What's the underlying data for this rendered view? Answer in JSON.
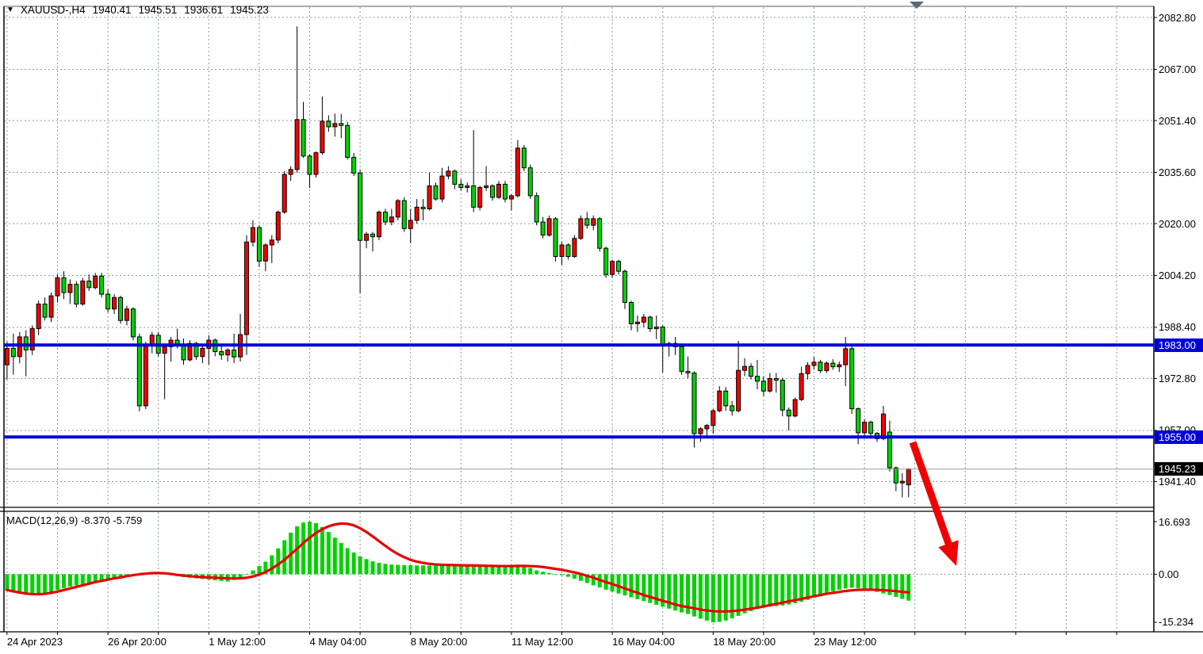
{
  "window": {
    "symbol": "XAUUSD-,H4",
    "open": "1940.41",
    "high": "1945.51",
    "low": "1936.61",
    "close": "1945.23"
  },
  "price_axis": {
    "ticks": [
      {
        "label": "2082.80",
        "price": 2082.8
      },
      {
        "label": "2067.00",
        "price": 2067.0
      },
      {
        "label": "2051.40",
        "price": 2051.4
      },
      {
        "label": "2035.60",
        "price": 2035.6
      },
      {
        "label": "2020.00",
        "price": 2020.0
      },
      {
        "label": "2004.20",
        "price": 2004.2
      },
      {
        "label": "1988.40",
        "price": 1988.4
      },
      {
        "label": "1972.80",
        "price": 1972.8
      },
      {
        "label": "1957.00",
        "price": 1957.0
      },
      {
        "label": "1941.40",
        "price": 1941.4
      }
    ],
    "badges": [
      {
        "label": "1983.00",
        "price": 1983.0,
        "bg": "#0000d8",
        "name": "resistance-price-badge"
      },
      {
        "label": "1955.00",
        "price": 1955.0,
        "bg": "#0000d8",
        "name": "support-price-badge"
      },
      {
        "label": "1945.23",
        "price": 1945.23,
        "bg": "#000000",
        "name": "current-price-badge"
      }
    ]
  },
  "time_axis": {
    "labels": [
      "24 Apr 2023",
      "26 Apr 20:00",
      "1 May 12:00",
      "4 May 04:00",
      "8 May 20:00",
      "11 May 12:00",
      "16 May 04:00",
      "18 May 20:00",
      "23 May 12:00"
    ]
  },
  "macd_panel": {
    "title": "MACD(12,26,9) -8.370 -5.759",
    "axis": [
      {
        "label": "16.693",
        "value": 16.693
      },
      {
        "label": "0.00",
        "value": 0.0
      },
      {
        "label": "-15.234",
        "value": -15.234
      }
    ]
  },
  "chart_data": {
    "type": "candlestick",
    "title": "XAUUSD-,H4",
    "timeframe": "H4",
    "x_labels": [
      "24 Apr 2023",
      "26 Apr 20:00",
      "1 May 12:00",
      "4 May 04:00",
      "8 May 20:00",
      "11 May 12:00",
      "16 May 04:00",
      "18 May 20:00",
      "23 May 12:00"
    ],
    "label_every_n_candles": 16,
    "price_range_visible": [
      1931.5,
      2086.0
    ],
    "grid": true,
    "hlines": [
      {
        "price": 1983.0,
        "label": "1983.00",
        "color": "#0000d8"
      },
      {
        "price": 1955.0,
        "label": "1955.00",
        "color": "#0000d8"
      }
    ],
    "current_price_line": 1945.23,
    "colors": {
      "bull": "#f40000",
      "bear": "#00d200",
      "wick": "#000000",
      "macd_bar": "#00d200",
      "macd_signal": "#e80000",
      "grid": "#8296aa",
      "level_line": "#0000d8",
      "price_line": "#9b9b9b",
      "shift_marker": "#56687c",
      "arrow": "#f00000"
    },
    "candles": {
      "open": [
        1977.0,
        1982.0,
        1979.5,
        1985.5,
        1981.5,
        1988.0,
        1995.5,
        1991.5,
        1998.0,
        2003.5,
        1999.0,
        2001.5,
        1995.5,
        2002.5,
        2000.5,
        2004.0,
        1998.5,
        1994.0,
        1997.5,
        1990.5,
        1994.0,
        1985.5,
        1964.5,
        1983.0,
        1986.0,
        1980.5,
        1982.5,
        1984.5,
        1983.0,
        1978.5,
        1983.5,
        1979.5,
        1982.0,
        1984.5,
        1981.0,
        1980.0,
        1981.5,
        1979.4,
        1986.2,
        2014.4,
        2018.8,
        2008.6,
        2013.5,
        2015.0,
        2023.5,
        2035.0,
        2036.5,
        2051.7,
        2040.6,
        2035.0,
        2041.6,
        2051.2,
        2049.5,
        2050.5,
        2049.9,
        2040.2,
        2035.4,
        2014.9,
        2016.8,
        2016.0,
        2023.5,
        2020.5,
        2022.0,
        2027.0,
        2018.5,
        2021.0,
        2025.0,
        2024.5,
        2031.5,
        2027.5,
        2034.5,
        2036.0,
        2032.0,
        2031.0,
        2031.5,
        2025.0,
        2031.0,
        2031.5,
        2028.0,
        2032.0,
        2027.5,
        2028.5,
        2043.0,
        2037.0,
        2028.5,
        2020.5,
        2016.5,
        2021.5,
        2010.0,
        2013.5,
        2010.0,
        2015.5,
        2021.5,
        2019.5,
        2021.5,
        2012.5,
        2004.5,
        2008.5,
        2005.5,
        1996.0,
        1989.5,
        1990.0,
        1991.5,
        1988.0,
        1988.5,
        1983.0,
        1983.5,
        1982.5,
        1975.0,
        1974.5,
        1956.0,
        1957.5,
        1958.5,
        1963.0,
        1969.0,
        1964.5,
        1963.0,
        1975.3,
        1976.5,
        1973.5,
        1972.0,
        1969.0,
        1972.8,
        1972.3,
        1963.2,
        1961.4,
        1966.4,
        1974.3,
        1976.8,
        1977.8,
        1975.2,
        1977.5,
        1976.4,
        1977.0,
        1981.9,
        1963.6,
        1956.3,
        1959.5,
        1956.1,
        1954.5,
        1956.5,
        1945.6,
        1941.0,
        1940.41
      ],
      "high": [
        1984.0,
        1986.5,
        1987.0,
        1987.5,
        1989.0,
        1996.5,
        1997.5,
        1999.0,
        2004.5,
        2005.5,
        2003.0,
        2002.5,
        2003.5,
        2004.5,
        2005.0,
        2005.0,
        2000.0,
        1998.5,
        1998.0,
        1995.0,
        1994.5,
        1986.5,
        1984.0,
        1987.0,
        1987.0,
        1983.5,
        1985.5,
        1988.0,
        1985.0,
        1984.5,
        1984.0,
        1983.0,
        1986.0,
        1985.0,
        1983.0,
        1982.0,
        1986.5,
        1992.5,
        2016.5,
        2021.0,
        2019.5,
        2014.0,
        2016.5,
        2024.0,
        2036.0,
        2037.5,
        2080.1,
        2057.1,
        2041.0,
        2042.0,
        2058.7,
        2053.0,
        2053.5,
        2053.4,
        2051.0,
        2041.5,
        2036.5,
        2017.5,
        2017.5,
        2024.0,
        2024.5,
        2024.5,
        2027.5,
        2028.0,
        2024.5,
        2027.5,
        2027.5,
        2035.5,
        2032.5,
        2037.0,
        2037.5,
        2036.5,
        2033.5,
        2032.5,
        2048.5,
        2031.5,
        2037.5,
        2032.0,
        2033.0,
        2033.0,
        2029.0,
        2045.5,
        2044.0,
        2038.0,
        2029.5,
        2022.0,
        2022.5,
        2022.0,
        2014.5,
        2014.0,
        2016.5,
        2022.5,
        2023.5,
        2022.5,
        2022.0,
        2013.0,
        2009.0,
        2009.0,
        2006.0,
        1996.5,
        1992.0,
        1992.5,
        1992.0,
        1992.0,
        1989.0,
        1984.0,
        1985.5,
        1983.5,
        1979.5,
        1975.0,
        1958.0,
        1959.0,
        1963.5,
        1970.5,
        1970.2,
        1966.0,
        1984.3,
        1979.0,
        1977.5,
        1978.5,
        1973.5,
        1974.5,
        1974.5,
        1973.0,
        1964.0,
        1967.0,
        1976.4,
        1977.8,
        1979.4,
        1978.5,
        1978.0,
        1978.7,
        1978.0,
        1985.5,
        1982.5,
        1964.0,
        1960.5,
        1960.0,
        1956.5,
        1964.5,
        1960.0,
        1946.0,
        1944.0,
        1945.51
      ],
      "low": [
        1972.5,
        1974.0,
        1977.5,
        1973.5,
        1980.0,
        1986.0,
        1990.5,
        1990.0,
        1996.0,
        1997.0,
        1995.5,
        1994.5,
        1995.0,
        1999.5,
        2000.0,
        1997.5,
        1993.0,
        1992.5,
        1989.5,
        1989.0,
        1984.5,
        1962.8,
        1963.5,
        1980.5,
        1979.5,
        1966.5,
        1978.0,
        1982.0,
        1977.0,
        1978.0,
        1978.5,
        1977.5,
        1977.0,
        1979.6,
        1978.5,
        1978.0,
        1977.5,
        1978.0,
        1980.0,
        2013.0,
        2006.8,
        2005.5,
        2008.0,
        2014.0,
        2023.0,
        2033.0,
        2035.5,
        2040.0,
        2030.9,
        2034.0,
        2041.0,
        2048.0,
        2046.5,
        2046.0,
        2039.5,
        2034.5,
        1998.8,
        2012.5,
        2011.5,
        2015.0,
        2019.5,
        2019.5,
        2021.0,
        2017.5,
        2014.0,
        2020.0,
        2021.0,
        2024.0,
        2027.0,
        2026.5,
        2033.5,
        2030.5,
        2030.0,
        2029.5,
        2023.5,
        2024.0,
        2030.0,
        2027.0,
        2027.5,
        2026.5,
        2024.0,
        2028.0,
        2036.0,
        2027.5,
        2019.5,
        2015.5,
        2016.0,
        2008.5,
        2007.5,
        2009.0,
        2009.5,
        2015.0,
        2018.5,
        2018.0,
        2011.5,
        2003.5,
        2003.5,
        2004.5,
        1994.0,
        1987.5,
        1987.0,
        1988.5,
        1987.0,
        1984.8,
        1974.6,
        1979.5,
        1980.0,
        1974.0,
        1973.0,
        1951.8,
        1953.5,
        1955.0,
        1956.0,
        1962.5,
        1963.0,
        1961.5,
        1962.5,
        1973.5,
        1972.5,
        1969.5,
        1967.5,
        1968.5,
        1968.5,
        1961.3,
        1957.0,
        1961.0,
        1966.0,
        1972.5,
        1975.5,
        1974.5,
        1974.5,
        1975.5,
        1974.8,
        1970.5,
        1962.0,
        1952.8,
        1954.5,
        1955.2,
        1953.5,
        1954.0,
        1944.5,
        1938.5,
        1936.6,
        1936.61
      ],
      "close": [
        1982.0,
        1979.5,
        1985.5,
        1981.5,
        1988.0,
        1995.5,
        1991.5,
        1998.0,
        2003.5,
        1999.0,
        2001.5,
        1995.5,
        2002.5,
        2000.5,
        2004.0,
        1998.5,
        1994.0,
        1997.5,
        1990.5,
        1994.0,
        1985.5,
        1964.5,
        1983.0,
        1986.0,
        1980.5,
        1982.5,
        1984.5,
        1983.0,
        1978.5,
        1983.5,
        1979.5,
        1982.0,
        1984.5,
        1981.0,
        1980.0,
        1981.5,
        1979.4,
        1986.2,
        2014.4,
        2018.8,
        2008.6,
        2013.5,
        2015.0,
        2023.5,
        2035.0,
        2036.5,
        2051.7,
        2040.6,
        2035.0,
        2041.6,
        2051.2,
        2049.5,
        2050.5,
        2049.9,
        2040.2,
        2035.4,
        2014.9,
        2016.8,
        2016.0,
        2023.5,
        2020.5,
        2022.0,
        2027.0,
        2018.5,
        2021.0,
        2025.0,
        2024.5,
        2031.5,
        2027.5,
        2034.5,
        2036.0,
        2032.0,
        2031.0,
        2031.5,
        2025.0,
        2031.0,
        2031.5,
        2028.0,
        2032.0,
        2027.5,
        2028.5,
        2043.0,
        2037.0,
        2028.5,
        2020.5,
        2016.5,
        2021.5,
        2010.0,
        2013.5,
        2010.0,
        2015.5,
        2021.5,
        2019.5,
        2021.5,
        2012.5,
        2004.5,
        2008.5,
        2005.5,
        1996.0,
        1989.5,
        1990.0,
        1991.5,
        1988.0,
        1988.5,
        1983.0,
        1983.5,
        1982.5,
        1975.0,
        1974.5,
        1956.0,
        1957.5,
        1958.5,
        1963.0,
        1969.0,
        1964.5,
        1963.0,
        1975.3,
        1976.5,
        1973.5,
        1972.0,
        1969.0,
        1972.8,
        1972.3,
        1963.2,
        1961.4,
        1966.4,
        1974.3,
        1976.8,
        1977.8,
        1975.2,
        1977.5,
        1976.4,
        1977.0,
        1981.9,
        1963.6,
        1956.3,
        1959.5,
        1956.1,
        1954.5,
        1962.0,
        1945.6,
        1941.0,
        1941.5,
        1945.23
      ]
    },
    "macd": {
      "params": "12,26,9",
      "last_macd": -8.37,
      "last_signal": -5.759,
      "ylim": [
        -15.234,
        16.693
      ],
      "histogram": [
        -5.2,
        -5.8,
        -6.2,
        -6.5,
        -6.6,
        -6.4,
        -6.0,
        -5.6,
        -5.0,
        -4.4,
        -3.9,
        -3.5,
        -3.1,
        -2.7,
        -2.3,
        -2.0,
        -1.8,
        -1.5,
        -1.2,
        -0.8,
        -0.5,
        -0.3,
        0.3,
        0.6,
        0.5,
        0.2,
        -0.2,
        -0.6,
        -0.9,
        -1.1,
        -1.3,
        -1.5,
        -1.7,
        -1.9,
        -2.1,
        -2.3,
        -1.8,
        -1.0,
        0.0,
        1.2,
        2.6,
        4.0,
        6.0,
        8.2,
        10.8,
        13.2,
        15.2,
        16.4,
        16.69,
        16.2,
        15.0,
        13.4,
        11.6,
        9.9,
        8.3,
        6.9,
        5.7,
        4.8,
        4.1,
        3.6,
        3.3,
        3.1,
        3.0,
        2.9,
        2.85,
        2.8,
        2.8,
        2.75,
        2.7,
        2.7,
        2.65,
        2.6,
        2.6,
        2.7,
        2.6,
        2.5,
        2.4,
        2.3,
        2.3,
        2.5,
        2.8,
        2.7,
        2.4,
        2.0,
        1.2,
        0.8,
        0.4,
        0.1,
        -0.3,
        -0.8,
        -1.4,
        -2.1,
        -2.8,
        -3.5,
        -4.2,
        -4.9,
        -5.5,
        -6.1,
        -6.7,
        -7.3,
        -7.9,
        -8.5,
        -9.1,
        -9.7,
        -10.3,
        -10.9,
        -11.5,
        -12.1,
        -12.6,
        -13.4,
        -14.1,
        -14.7,
        -15.234,
        -15.1,
        -14.7,
        -14.0,
        -13.2,
        -12.4,
        -11.7,
        -11.0,
        -10.6,
        -10.3,
        -10.1,
        -9.9,
        -9.6,
        -9.2,
        -8.7,
        -8.1,
        -7.4,
        -6.7,
        -6.0,
        -5.4,
        -4.9,
        -4.5,
        -4.3,
        -4.4,
        -4.7,
        -5.1,
        -5.6,
        -6.1,
        -6.6,
        -7.2,
        -7.8,
        -8.37
      ],
      "signal": [
        -5.0,
        -5.4,
        -5.8,
        -6.1,
        -6.3,
        -6.35,
        -6.2,
        -5.9,
        -5.5,
        -5.0,
        -4.5,
        -4.0,
        -3.5,
        -3.0,
        -2.5,
        -2.1,
        -1.7,
        -1.3,
        -1.0,
        -0.6,
        -0.3,
        0.0,
        0.2,
        0.35,
        0.4,
        0.3,
        0.1,
        -0.2,
        -0.4,
        -0.6,
        -0.8,
        -0.9,
        -1.0,
        -1.1,
        -1.2,
        -1.3,
        -1.35,
        -1.3,
        -1.1,
        -0.7,
        -0.1,
        0.7,
        1.8,
        3.1,
        4.6,
        6.3,
        8.1,
        9.9,
        11.6,
        13.1,
        14.3,
        15.2,
        15.8,
        16.1,
        16.0,
        15.5,
        14.6,
        13.4,
        12.0,
        10.5,
        9.0,
        7.6,
        6.4,
        5.4,
        4.6,
        4.0,
        3.6,
        3.3,
        3.1,
        3.0,
        2.95,
        2.9,
        2.85,
        2.8,
        2.8,
        2.75,
        2.7,
        2.65,
        2.6,
        2.6,
        2.6,
        2.65,
        2.65,
        2.6,
        2.5,
        2.3,
        2.0,
        1.7,
        1.4,
        1.0,
        0.6,
        0.1,
        -0.5,
        -1.1,
        -1.8,
        -2.5,
        -3.1,
        -3.8,
        -4.5,
        -5.2,
        -5.9,
        -6.6,
        -7.2,
        -7.8,
        -8.4,
        -9.0,
        -9.6,
        -10.1,
        -10.4,
        -10.8,
        -11.2,
        -11.5,
        -11.7,
        -11.8,
        -11.8,
        -11.7,
        -11.5,
        -11.2,
        -10.9,
        -10.6,
        -10.2,
        -9.8,
        -9.4,
        -9.0,
        -8.6,
        -8.2,
        -7.8,
        -7.4,
        -7.0,
        -6.6,
        -6.2,
        -5.9,
        -5.6,
        -5.3,
        -5.1,
        -4.95,
        -4.9,
        -4.9,
        -4.95,
        -5.05,
        -5.2,
        -5.35,
        -5.55,
        -5.759
      ]
    },
    "annotation_arrow": {
      "from": [
        1151,
        558
      ],
      "to": [
        1206,
        714
      ]
    }
  }
}
